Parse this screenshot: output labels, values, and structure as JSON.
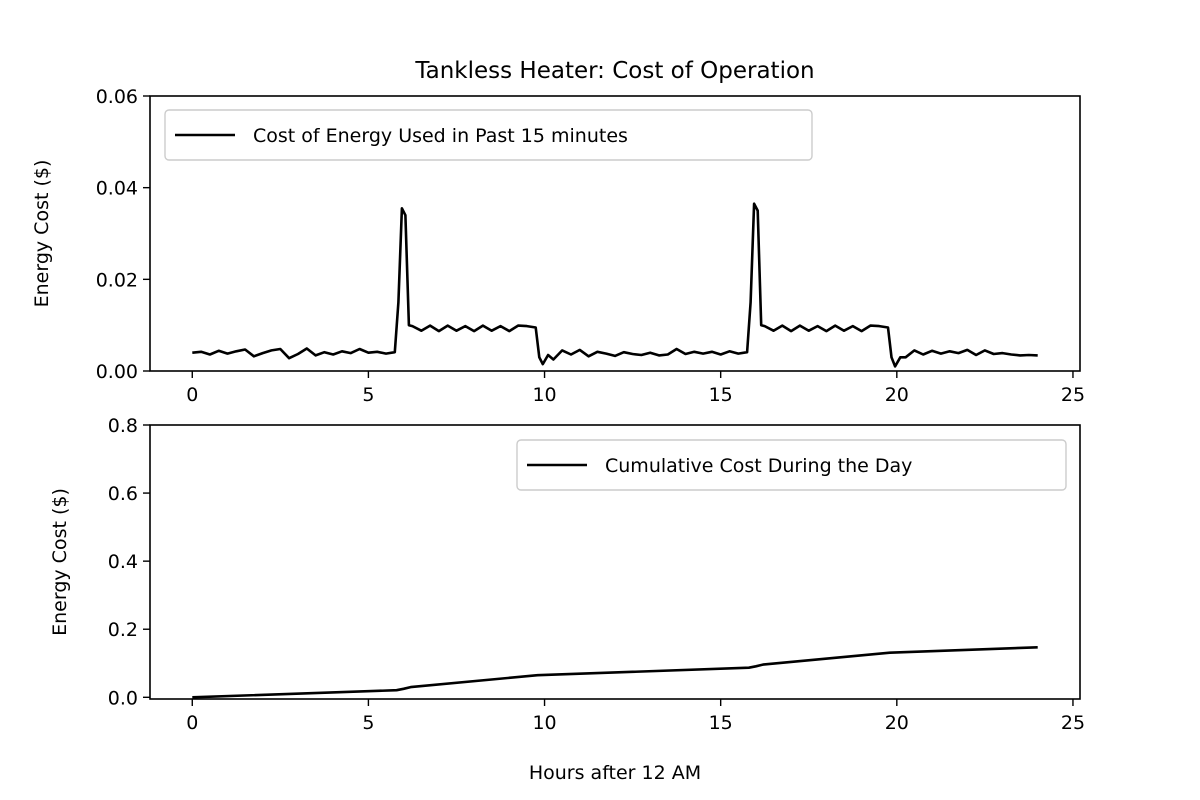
{
  "chart_data": [
    {
      "type": "line",
      "title": "Tankless Heater: Cost of Operation",
      "xlabel": "",
      "ylabel": "Energy Cost ($)",
      "xlim": [
        -1.2,
        25.2
      ],
      "ylim": [
        0,
        0.06
      ],
      "xticks": [
        0,
        5,
        10,
        15,
        20,
        25
      ],
      "yticks": [
        0,
        0.02,
        0.04,
        0.06
      ],
      "ytick_labels": [
        "0.00",
        "0.02",
        "0.04",
        "0.06"
      ],
      "legend_position": "upper-left",
      "grid": false,
      "series": [
        {
          "name": "Cost of Energy Used in Past 15 minutes",
          "color": "#000000",
          "x": [
            0,
            0.25,
            0.5,
            0.75,
            1,
            1.25,
            1.5,
            1.75,
            2,
            2.25,
            2.5,
            2.75,
            3,
            3.25,
            3.5,
            3.75,
            4,
            4.25,
            4.5,
            4.75,
            5,
            5.25,
            5.5,
            5.75,
            5.85,
            5.95,
            6.05,
            6.15,
            6.25,
            6.5,
            6.75,
            7,
            7.25,
            7.5,
            7.75,
            8,
            8.25,
            8.5,
            8.75,
            9,
            9.25,
            9.5,
            9.75,
            9.85,
            9.95,
            10.1,
            10.25,
            10.5,
            10.75,
            11,
            11.25,
            11.5,
            11.75,
            12,
            12.25,
            12.5,
            12.75,
            13,
            13.25,
            13.5,
            13.75,
            14,
            14.25,
            14.5,
            14.75,
            15,
            15.25,
            15.5,
            15.75,
            15.85,
            15.95,
            16.05,
            16.15,
            16.25,
            16.5,
            16.75,
            17,
            17.25,
            17.5,
            17.75,
            18,
            18.25,
            18.5,
            18.75,
            19,
            19.25,
            19.5,
            19.75,
            19.85,
            19.95,
            20.1,
            20.25,
            20.5,
            20.75,
            21,
            21.25,
            21.5,
            21.75,
            22,
            22.25,
            22.5,
            22.75,
            23,
            23.25,
            23.5,
            23.75,
            24
          ],
          "y": [
            0.004,
            0.0042,
            0.0036,
            0.0044,
            0.0038,
            0.0043,
            0.0047,
            0.0032,
            0.0039,
            0.0045,
            0.0048,
            0.0028,
            0.0037,
            0.0049,
            0.0034,
            0.0041,
            0.0036,
            0.0043,
            0.0039,
            0.0048,
            0.004,
            0.0042,
            0.0038,
            0.0041,
            0.015,
            0.0355,
            0.034,
            0.01,
            0.0098,
            0.0088,
            0.0099,
            0.0087,
            0.0099,
            0.0088,
            0.0098,
            0.0087,
            0.0099,
            0.0088,
            0.0098,
            0.0087,
            0.0099,
            0.0098,
            0.0095,
            0.003,
            0.0015,
            0.0035,
            0.0025,
            0.0045,
            0.0036,
            0.0046,
            0.0032,
            0.0042,
            0.0038,
            0.0033,
            0.0041,
            0.0037,
            0.0035,
            0.004,
            0.0034,
            0.0036,
            0.0048,
            0.0037,
            0.0042,
            0.0038,
            0.0042,
            0.0036,
            0.0043,
            0.0038,
            0.0041,
            0.015,
            0.0365,
            0.035,
            0.01,
            0.0098,
            0.0088,
            0.0099,
            0.0087,
            0.0099,
            0.0088,
            0.0098,
            0.0087,
            0.0099,
            0.0088,
            0.0098,
            0.0087,
            0.0099,
            0.0098,
            0.0095,
            0.003,
            0.001,
            0.003,
            0.003,
            0.0045,
            0.0036,
            0.0044,
            0.0038,
            0.0043,
            0.0039,
            0.0046,
            0.0035,
            0.0045,
            0.0037,
            0.0039,
            0.0036,
            0.0034,
            0.0035,
            0.0034
          ]
        }
      ]
    },
    {
      "type": "line",
      "title": "",
      "xlabel": "Hours after 12 AM",
      "ylabel": "Energy Cost ($)",
      "xlim": [
        -1.2,
        25.2
      ],
      "ylim": [
        -0.005,
        0.8
      ],
      "xticks": [
        0,
        5,
        10,
        15,
        20,
        25
      ],
      "yticks": [
        0,
        0.2,
        0.4,
        0.6,
        0.8
      ],
      "ytick_labels": [
        "0.0",
        "0.2",
        "0.4",
        "0.6",
        "0.8"
      ],
      "legend_position": "upper-right",
      "grid": false,
      "series": [
        {
          "name": "Cumulative Cost During the Day",
          "color": "#000000",
          "x": [
            0,
            5.8,
            6.0,
            6.2,
            9.8,
            15.8,
            16.0,
            16.2,
            19.8,
            24
          ],
          "y": [
            0,
            0.021,
            0.025,
            0.03,
            0.065,
            0.087,
            0.091,
            0.096,
            0.131,
            0.147
          ]
        }
      ]
    }
  ]
}
